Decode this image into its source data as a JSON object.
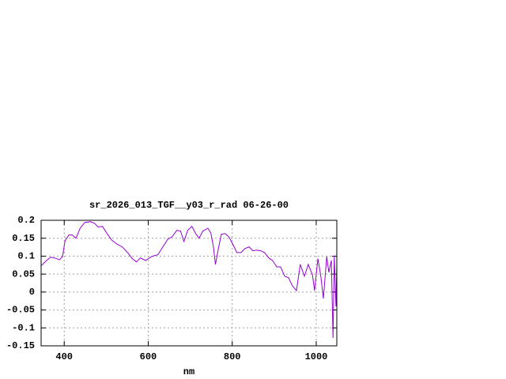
{
  "chart_data": {
    "type": "line",
    "title": "sr_2026_013_TGF__y03_r_rad 06-26-00",
    "x_label": "nm",
    "xlim": [
      345,
      1049
    ],
    "xticks": [
      400,
      600,
      800,
      1000
    ],
    "ylim": [
      -0.15,
      0.2
    ],
    "yticks": [
      0.2,
      0.15,
      0.1,
      0.05,
      0,
      -0.05,
      -0.1,
      -0.15
    ],
    "grid": true,
    "series": [
      {
        "color": "#9400d3",
        "x": [
          345,
          358,
          368,
          377,
          389,
          396,
          402,
          411,
          419,
          428,
          438,
          449,
          462,
          472,
          481,
          491,
          502,
          513,
          525,
          538,
          551,
          562,
          572,
          581,
          594,
          608,
          623,
          636,
          647,
          657,
          668,
          677,
          685,
          694,
          704,
          713,
          721,
          730,
          742,
          749,
          755,
          760,
          766,
          774,
          783,
          792,
          802,
          811,
          821,
          830,
          840,
          849,
          858,
          868,
          877,
          887,
          896,
          906,
          915,
          925,
          934,
          943,
          953,
          962,
          972,
          981,
          991,
          996,
          1004,
          1011,
          1017,
          1025,
          1030,
          1036,
          1040,
          1043,
          1047,
          1049
        ],
        "values": [
          0.073,
          0.088,
          0.097,
          0.095,
          0.09,
          0.099,
          0.143,
          0.159,
          0.159,
          0.15,
          0.178,
          0.194,
          0.196,
          0.192,
          0.181,
          0.183,
          0.163,
          0.145,
          0.134,
          0.126,
          0.11,
          0.093,
          0.084,
          0.095,
          0.088,
          0.099,
          0.104,
          0.128,
          0.148,
          0.154,
          0.172,
          0.17,
          0.141,
          0.172,
          0.183,
          0.163,
          0.15,
          0.17,
          0.178,
          0.165,
          0.128,
          0.077,
          0.115,
          0.161,
          0.163,
          0.154,
          0.132,
          0.11,
          0.11,
          0.121,
          0.126,
          0.115,
          0.117,
          0.115,
          0.11,
          0.095,
          0.088,
          0.07,
          0.07,
          0.044,
          0.04,
          0.018,
          0.004,
          0.077,
          0.044,
          0.077,
          0.048,
          0.004,
          0.093,
          0.044,
          -0.018,
          0.099,
          0.055,
          0.088,
          -0.128,
          0.101,
          -0.04,
          0.077
        ]
      }
    ]
  }
}
